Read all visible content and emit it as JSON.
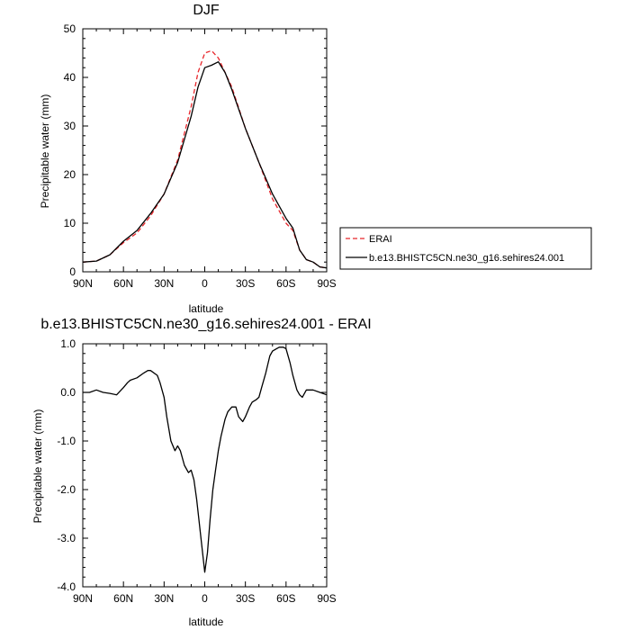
{
  "chart_data": [
    {
      "type": "line",
      "title": "DJF",
      "xlabel": "latitude",
      "ylabel": "Precipitable water (mm)",
      "xlim": [
        90,
        -90
      ],
      "ylim": [
        0,
        50
      ],
      "x_tick_labels": [
        "90N",
        "60N",
        "30N",
        "0",
        "30S",
        "60S",
        "90S"
      ],
      "y_tick_labels": [
        "0",
        "10",
        "20",
        "30",
        "40",
        "50"
      ],
      "legend": {
        "position": "right"
      },
      "series": [
        {
          "name": "ERAI",
          "color": "#e8262b",
          "style": "dashed",
          "x": [
            90,
            80,
            70,
            60,
            50,
            40,
            30,
            20,
            10,
            5,
            0,
            -5,
            -10,
            -15,
            -20,
            -30,
            -40,
            -50,
            -60,
            -65,
            -70,
            -75,
            -80,
            -85,
            -90
          ],
          "y": [
            2,
            2.2,
            3.5,
            6,
            8,
            11.5,
            16,
            23,
            34,
            41,
            45,
            45.5,
            44,
            41,
            38,
            29.5,
            22.5,
            15,
            10,
            8.5,
            4.5,
            2.5,
            2,
            1,
            0.8
          ]
        },
        {
          "name": "b.e13.BHISTC5CN.ne30_g16.sehires24.001",
          "color": "#000000",
          "style": "solid",
          "x": [
            90,
            80,
            70,
            60,
            50,
            40,
            30,
            20,
            10,
            5,
            0,
            -5,
            -10,
            -15,
            -20,
            -30,
            -40,
            -50,
            -60,
            -65,
            -70,
            -75,
            -80,
            -85,
            -90
          ],
          "y": [
            2,
            2.2,
            3.5,
            6.3,
            8.5,
            12,
            16,
            22.5,
            32,
            38,
            42,
            42.5,
            43.2,
            41,
            37.5,
            29.5,
            22.5,
            16,
            11,
            9,
            4.5,
            2.5,
            2,
            1,
            0.8
          ]
        }
      ]
    },
    {
      "type": "line",
      "title": "b.e13.BHISTC5CN.ne30_g16.sehires24.001 - ERAI",
      "xlabel": "latitude",
      "ylabel": "Precipitable water (mm)",
      "xlim": [
        90,
        -90
      ],
      "ylim": [
        -4,
        1
      ],
      "x_tick_labels": [
        "90N",
        "60N",
        "30N",
        "0",
        "30S",
        "60S",
        "90S"
      ],
      "y_tick_labels": [
        "1.0",
        "0.0",
        "-1.0",
        "-2.0",
        "-3.0",
        "-4.0"
      ],
      "series": [
        {
          "color": "#000000",
          "x": [
            90,
            85,
            80,
            75,
            70,
            65,
            60,
            57,
            55,
            50,
            45,
            42,
            40,
            35,
            33,
            30,
            28,
            25,
            22,
            20,
            18,
            15,
            12,
            10,
            8,
            6,
            4,
            2,
            0,
            -2,
            -4,
            -6,
            -8,
            -10,
            -12,
            -15,
            -17,
            -20,
            -23,
            -25,
            -28,
            -30,
            -33,
            -35,
            -38,
            -40,
            -42,
            -45,
            -48,
            -50,
            -53,
            -55,
            -58,
            -60,
            -63,
            -65,
            -68,
            -70,
            -72,
            -75,
            -78,
            -80,
            -85,
            -90
          ],
          "y": [
            0.0,
            0.0,
            0.05,
            0.0,
            -0.02,
            -0.05,
            0.1,
            0.2,
            0.25,
            0.3,
            0.4,
            0.45,
            0.45,
            0.35,
            0.2,
            -0.1,
            -0.5,
            -1.0,
            -1.2,
            -1.1,
            -1.2,
            -1.5,
            -1.65,
            -1.6,
            -1.8,
            -2.2,
            -2.7,
            -3.2,
            -3.7,
            -3.3,
            -2.6,
            -2.0,
            -1.6,
            -1.2,
            -0.9,
            -0.55,
            -0.4,
            -0.3,
            -0.3,
            -0.5,
            -0.6,
            -0.5,
            -0.3,
            -0.2,
            -0.15,
            -0.1,
            0.1,
            0.4,
            0.75,
            0.85,
            0.9,
            0.93,
            0.93,
            0.9,
            0.6,
            0.35,
            0.05,
            -0.05,
            -0.1,
            0.05,
            0.05,
            0.05,
            0.0,
            -0.05
          ]
        }
      ]
    }
  ]
}
